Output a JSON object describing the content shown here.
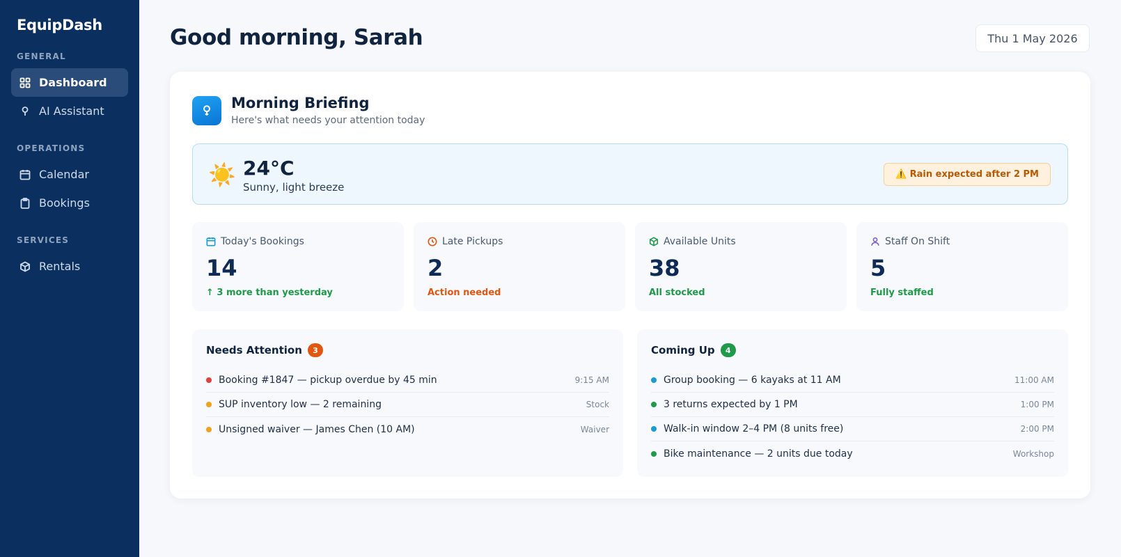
{
  "app": {
    "name": "EquipDash"
  },
  "sidebar": {
    "sections": [
      {
        "label": "GENERAL",
        "items": [
          {
            "label": "Dashboard",
            "icon": "grid-icon",
            "active": true
          },
          {
            "label": "AI Assistant",
            "icon": "lightbulb-icon",
            "active": false
          }
        ]
      },
      {
        "label": "OPERATIONS",
        "items": [
          {
            "label": "Calendar",
            "icon": "calendar-icon",
            "active": false
          },
          {
            "label": "Bookings",
            "icon": "clipboard-icon",
            "active": false
          }
        ]
      },
      {
        "label": "SERVICES",
        "items": [
          {
            "label": "Rentals",
            "icon": "box-icon",
            "active": false
          }
        ]
      }
    ]
  },
  "header": {
    "greeting": "Good morning, Sarah",
    "date": "Thu 1 May 2026"
  },
  "briefing": {
    "title": "Morning Briefing",
    "subtitle": "Here's what needs your attention today",
    "icon": "lightbulb-icon"
  },
  "weather": {
    "icon": "☀️",
    "temperature": "24°C",
    "condition": "Sunny, light breeze",
    "alert": "⚠️ Rain expected after 2 PM"
  },
  "stats": [
    {
      "label": "Today's Bookings",
      "value": "14",
      "note": "↑ 3 more than yesterday",
      "icon": "calendar-icon",
      "icon_color": "#1b9ad6",
      "note_color": "green"
    },
    {
      "label": "Late Pickups",
      "value": "2",
      "note": "Action needed",
      "icon": "clock-icon",
      "icon_color": "#e2560f",
      "note_color": "orange"
    },
    {
      "label": "Available Units",
      "value": "38",
      "note": "All stocked",
      "icon": "box-icon",
      "icon_color": "#1e9a48",
      "note_color": "green"
    },
    {
      "label": "Staff On Shift",
      "value": "5",
      "note": "Fully staffed",
      "icon": "user-icon",
      "icon_color": "#7a5bd0",
      "note_color": "green"
    }
  ],
  "needs_attention": {
    "title": "Needs Attention",
    "count": "3",
    "badge_color": "#e2560f",
    "items": [
      {
        "text": "Booking #1847 — pickup overdue by 45 min",
        "meta": "9:15 AM",
        "dot_color": "#e0413a"
      },
      {
        "text": "SUP inventory low — 2 remaining",
        "meta": "Stock",
        "dot_color": "#f0a11a"
      },
      {
        "text": "Unsigned waiver — James Chen (10 AM)",
        "meta": "Waiver",
        "dot_color": "#f0a11a"
      }
    ]
  },
  "coming_up": {
    "title": "Coming Up",
    "count": "4",
    "badge_color": "#1e9a48",
    "items": [
      {
        "text": "Group booking — 6 kayaks at 11 AM",
        "meta": "11:00 AM",
        "dot_color": "#1b9ad6"
      },
      {
        "text": "3 returns expected by 1 PM",
        "meta": "1:00 PM",
        "dot_color": "#1e9a48"
      },
      {
        "text": "Walk-in window 2–4 PM (8 units free)",
        "meta": "2:00 PM",
        "dot_color": "#1b9ad6"
      },
      {
        "text": "Bike maintenance — 2 units due today",
        "meta": "Workshop",
        "dot_color": "#1e9a48"
      }
    ]
  }
}
